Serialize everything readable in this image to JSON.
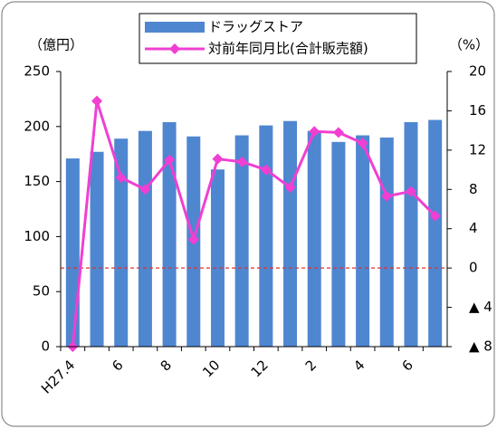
{
  "chart_data": {
    "type": "bar-line",
    "y_label": "（億円）",
    "y2_label": "（%）",
    "categories": [
      "H27.4",
      null,
      "6",
      null,
      "8",
      null,
      "10",
      null,
      "12",
      null,
      "2",
      null,
      "4",
      null,
      "6",
      null
    ],
    "series": [
      {
        "name": "ドラッグストア",
        "type": "bar",
        "color": "#4f86d0",
        "values": [
          171,
          177,
          189,
          196,
          204,
          191,
          161,
          192,
          201,
          205,
          196,
          186,
          192,
          190,
          204,
          206
        ]
      },
      {
        "name": "対前年同月比(合計販売額)",
        "type": "line",
        "axis": "y2",
        "color": "#f03fd2",
        "values": [
          -8,
          17.0,
          9.2,
          8.0,
          11.0,
          2.9,
          11.1,
          10.8,
          10.0,
          8.2,
          13.9,
          13.8,
          12.7,
          7.3,
          7.8,
          5.3
        ]
      }
    ],
    "ylim": [
      0,
      250
    ],
    "yticks": [
      0,
      50,
      100,
      150,
      200,
      250
    ],
    "y2lim": [
      -8,
      20
    ],
    "y2ticks": [
      {
        "value": -8,
        "label": "▲ 8"
      },
      {
        "value": -4,
        "label": "▲ 4"
      },
      0,
      4,
      8,
      12,
      16,
      20
    ],
    "zero_line_color": "#e03030",
    "legend": "top"
  }
}
